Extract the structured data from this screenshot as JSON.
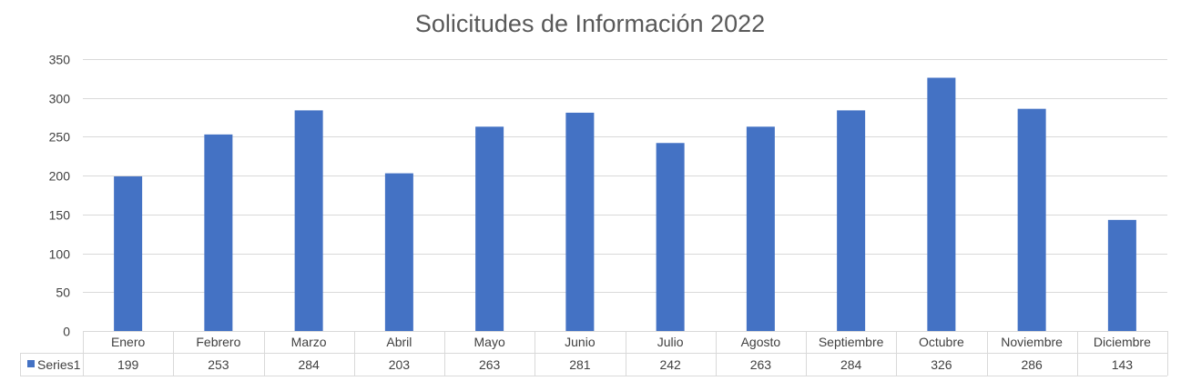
{
  "chart_data": {
    "type": "bar",
    "title": "Solicitudes de Información 2022",
    "xlabel": "",
    "ylabel": "",
    "categories": [
      "Enero",
      "Febrero",
      "Marzo",
      "Abril",
      "Mayo",
      "Junio",
      "Julio",
      "Agosto",
      "Septiembre",
      "Octubre",
      "Noviembre",
      "Diciembre"
    ],
    "series": [
      {
        "name": "Series1",
        "values": [
          199,
          253,
          284,
          203,
          263,
          281,
          242,
          263,
          284,
          326,
          286,
          143
        ],
        "color": "#4472c4"
      }
    ],
    "ylim": [
      0,
      350
    ],
    "yticks": [
      0,
      50,
      100,
      150,
      200,
      250,
      300,
      350
    ],
    "grid": true,
    "legend": "data-table"
  }
}
